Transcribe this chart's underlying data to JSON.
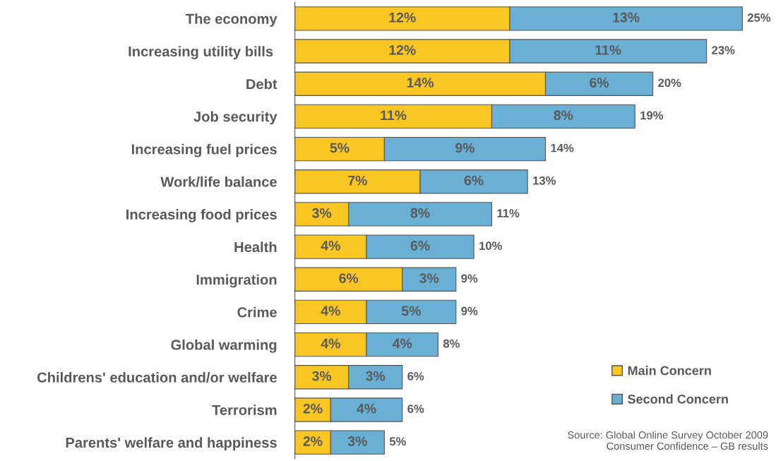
{
  "chart_data": {
    "type": "bar",
    "orientation": "horizontal",
    "stacked": true,
    "tick_labels": "y",
    "grid": false,
    "legend": "bottom right",
    "categories": [
      "The economy",
      "Increasing utility bills ",
      "Debt",
      "Job security",
      "Increasing fuel prices",
      "Work/life balance",
      "Increasing food prices",
      "Health",
      "Immigration",
      "Crime",
      "Global warming",
      "Childrens' education and/or welfare",
      "Terrorism",
      "Parents' welfare and happiness"
    ],
    "series": [
      {
        "name": "Main Concern",
        "color": "#f9c623",
        "values": [
          12,
          12,
          14,
          11,
          5,
          7,
          3,
          4,
          6,
          4,
          4,
          3,
          2,
          2
        ],
        "value_labels": [
          "12%",
          "12%",
          "14%",
          "11%",
          "5%",
          "7%",
          "3%",
          "4%",
          "6%",
          "4%",
          "4%",
          "3%",
          "2%",
          "2%"
        ]
      },
      {
        "name": "Second Concern",
        "color": "#6ab0d4",
        "values": [
          13,
          11,
          6,
          8,
          9,
          6,
          8,
          6,
          3,
          5,
          4,
          3,
          4,
          3
        ],
        "value_labels": [
          "13%",
          "11%",
          "6%",
          "8%",
          "9%",
          "6%",
          "8%",
          "6%",
          "3%",
          "5%",
          "4%",
          "3%",
          "4%",
          "3%"
        ]
      }
    ],
    "totals": [
      "25%",
      "23%",
      "20%",
      "19%",
      "14%",
      "13%",
      "11%",
      "10%",
      "9%",
      "9%",
      "8%",
      "6%",
      "6%",
      "5%"
    ],
    "annotations": [
      "Source: Global Online Survey October 2009\nConsumer Confidence – GB results"
    ]
  }
}
